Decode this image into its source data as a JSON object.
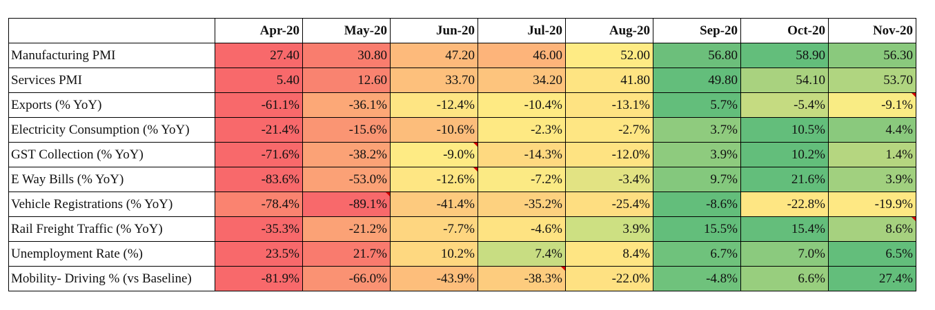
{
  "chart_data": {
    "type": "heatmap",
    "columns": [
      "Apr-20",
      "May-20",
      "Jun-20",
      "Jul-20",
      "Aug-20",
      "Sep-20",
      "Oct-20",
      "Nov-20"
    ],
    "rows": [
      {
        "name": "Manufacturing PMI",
        "cells": [
          "27.40",
          "30.80",
          "47.20",
          "46.00",
          "52.00",
          "56.80",
          "58.90",
          "56.30"
        ],
        "colors": [
          "#f8696b",
          "#f97d6e",
          "#fdba7b",
          "#fdb47a",
          "#feeb84",
          "#6cbf7b",
          "#63be7b",
          "#8ac97d"
        ]
      },
      {
        "name": "Services PMI",
        "cells": [
          "5.40",
          "12.60",
          "33.70",
          "34.20",
          "41.80",
          "49.80",
          "54.10",
          "53.70"
        ],
        "colors": [
          "#f8696b",
          "#f98370",
          "#fdc07c",
          "#fdc47d",
          "#fee482",
          "#63be7b",
          "#a9d27f",
          "#b0d580"
        ]
      },
      {
        "name": "Exports (% YoY)",
        "cells": [
          "-61.1%",
          "-36.1%",
          "-12.4%",
          "-10.4%",
          "-13.1%",
          "5.7%",
          "-5.4%",
          "-9.1%"
        ],
        "colors": [
          "#f8696b",
          "#fca877",
          "#fee583",
          "#feea83",
          "#fee382",
          "#63be7b",
          "#c5db81",
          "#f9ec84"
        ]
      },
      {
        "name": "Electricity Consumption (% YoY)",
        "cells": [
          "-21.4%",
          "-15.6%",
          "-10.6%",
          "-2.3%",
          "-2.7%",
          "3.7%",
          "10.5%",
          "4.4%"
        ],
        "colors": [
          "#f8696b",
          "#fa9573",
          "#fcbd7b",
          "#fee983",
          "#fee683",
          "#8fcb7e",
          "#63be7b",
          "#8ac97d"
        ]
      },
      {
        "name": "GST Collection (% YoY)",
        "cells": [
          "-71.6%",
          "-38.2%",
          "-9.0%",
          "-14.3%",
          "-12.0%",
          "3.9%",
          "10.2%",
          "1.4%"
        ],
        "colors": [
          "#f8696b",
          "#fba276",
          "#feeb84",
          "#fed980",
          "#fee382",
          "#8ecb7e",
          "#63be7b",
          "#b5d680"
        ]
      },
      {
        "name": "E Way Bills (% YoY)",
        "cells": [
          "-83.6%",
          "-53.0%",
          "-12.6%",
          "-7.2%",
          "-3.4%",
          "9.7%",
          "21.6%",
          "3.9%"
        ],
        "colors": [
          "#f8696b",
          "#fba176",
          "#fee683",
          "#fbea84",
          "#e2e383",
          "#84c87d",
          "#63be7b",
          "#a1d07f"
        ]
      },
      {
        "name": "Vehicle Registrations (% YoY)",
        "cells": [
          "-78.4%",
          "-89.1%",
          "-41.4%",
          "-35.2%",
          "-25.4%",
          "-8.6%",
          "-22.8%",
          "-19.9%"
        ],
        "colors": [
          "#fa8370",
          "#f8696b",
          "#fdca7e",
          "#fdd17f",
          "#fede81",
          "#63be7b",
          "#fee683",
          "#fee883"
        ]
      },
      {
        "name": "Rail Freight Traffic (% YoY)",
        "cells": [
          "-35.3%",
          "-21.2%",
          "-7.7%",
          "-4.6%",
          "3.9%",
          "15.5%",
          "15.4%",
          "8.6%"
        ],
        "colors": [
          "#f8696b",
          "#fba276",
          "#fed680",
          "#fee382",
          "#cde082",
          "#63be7b",
          "#64be7b",
          "#a6d17f"
        ]
      },
      {
        "name": "Unemployment Rate (%)",
        "cells": [
          "23.5%",
          "21.7%",
          "10.2%",
          "7.4%",
          "8.4%",
          "6.7%",
          "7.0%",
          "6.5%"
        ],
        "colors": [
          "#f8696b",
          "#f97b6e",
          "#fed880",
          "#c8dd82",
          "#fee583",
          "#6fc27c",
          "#8bca7e",
          "#63be7b"
        ]
      },
      {
        "name": "Mobility- Driving % (vs Baseline)",
        "cells": [
          "-81.9%",
          "-66.0%",
          "-43.9%",
          "-38.3%",
          "-22.0%",
          "-4.8%",
          "6.6%",
          "27.4%"
        ],
        "colors": [
          "#f8696b",
          "#fa9273",
          "#fdbe7b",
          "#fdcc7e",
          "#fee182",
          "#6fc27c",
          "#98ce7e",
          "#63be7b"
        ]
      }
    ],
    "comment_marks": [
      [
        2,
        7
      ],
      [
        4,
        2
      ],
      [
        5,
        2
      ],
      [
        6,
        1
      ],
      [
        7,
        7
      ],
      [
        9,
        3
      ]
    ]
  }
}
